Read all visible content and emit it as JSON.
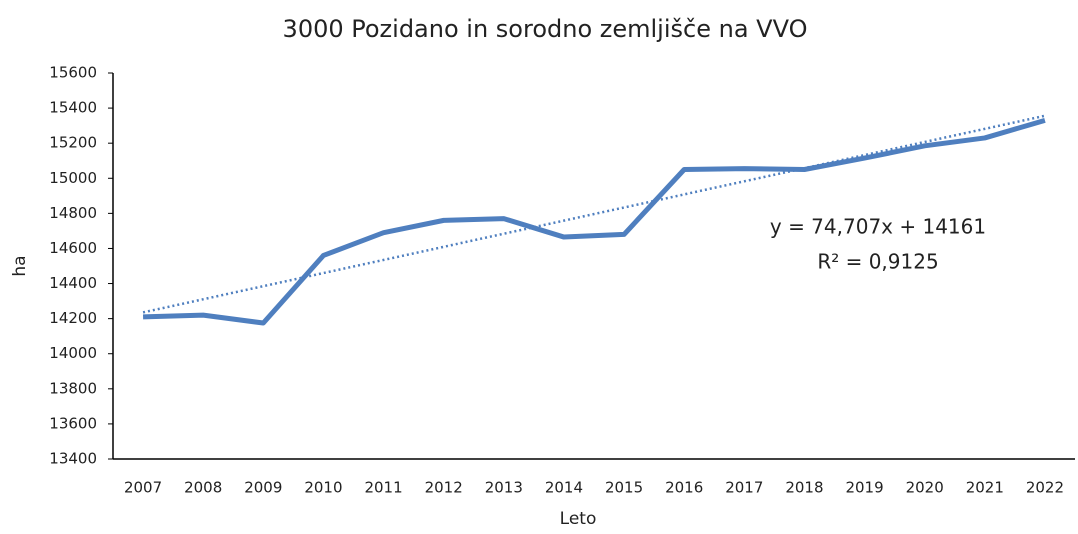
{
  "chart_data": {
    "type": "line",
    "title": "3000 Pozidano in sorodno zemljišče na VVO",
    "x_label": "Leto",
    "y_label": "ha",
    "categories": [
      "2007",
      "2008",
      "2009",
      "2010",
      "2011",
      "2012",
      "2013",
      "2014",
      "2015",
      "2016",
      "2017",
      "2018",
      "2019",
      "2020",
      "2021",
      "2022"
    ],
    "series": [
      {
        "color": "#4f7fbf",
        "values": [
          14210,
          14220,
          14175,
          14560,
          14690,
          14760,
          14770,
          14665,
          14680,
          15050,
          15055,
          15050,
          15115,
          15185,
          15230,
          15330
        ]
      }
    ],
    "trendline": {
      "slope": 74.707,
      "intercept": 14161,
      "color": "#4f7fbf"
    },
    "annotations": [
      "y = 74,707x + 14161",
      "R² = 0,9125"
    ],
    "ylim": [
      13400,
      15600
    ],
    "yticks": [
      13400,
      13600,
      13800,
      14000,
      14200,
      14400,
      14600,
      14800,
      15000,
      15200,
      15400,
      15600
    ],
    "grid": false
  }
}
